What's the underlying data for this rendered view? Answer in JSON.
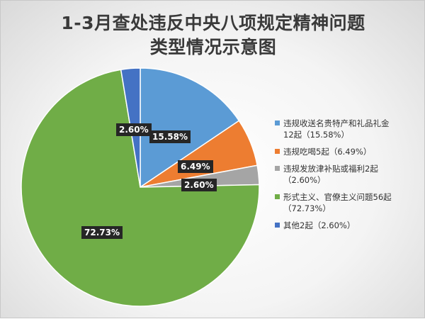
{
  "title": [
    "1-3月查处违反中央八项规定精神问题",
    "类型情况示意图"
  ],
  "chart_data": {
    "type": "pie",
    "start_angle_deg": 0,
    "direction": "clockwise",
    "legend_position": "right",
    "slices": [
      {
        "value": 15.58,
        "label": "15.58%",
        "color": "#5b9bd5",
        "legend_lines": [
          "违规收送名贵特产和礼品礼金",
          "12起（15.58%）"
        ]
      },
      {
        "value": 6.49,
        "label": "6.49%",
        "color": "#ed7d31",
        "legend_lines": [
          "违规吃喝5起（6.49%）"
        ]
      },
      {
        "value": 2.6,
        "label": "2.60%",
        "color": "#a5a5a5",
        "legend_lines": [
          "违规发放津补贴或福利2起",
          "（2.60%）"
        ]
      },
      {
        "value": 72.73,
        "label": "72.73%",
        "color": "#70ad47",
        "legend_lines": [
          "形式主义、官僚主义问题56起",
          "（72.73%）"
        ]
      },
      {
        "value": 2.6,
        "label": "2.60%",
        "color": "#4472c4",
        "legend_lines": [
          "其他2起（2.60%）"
        ]
      }
    ]
  }
}
